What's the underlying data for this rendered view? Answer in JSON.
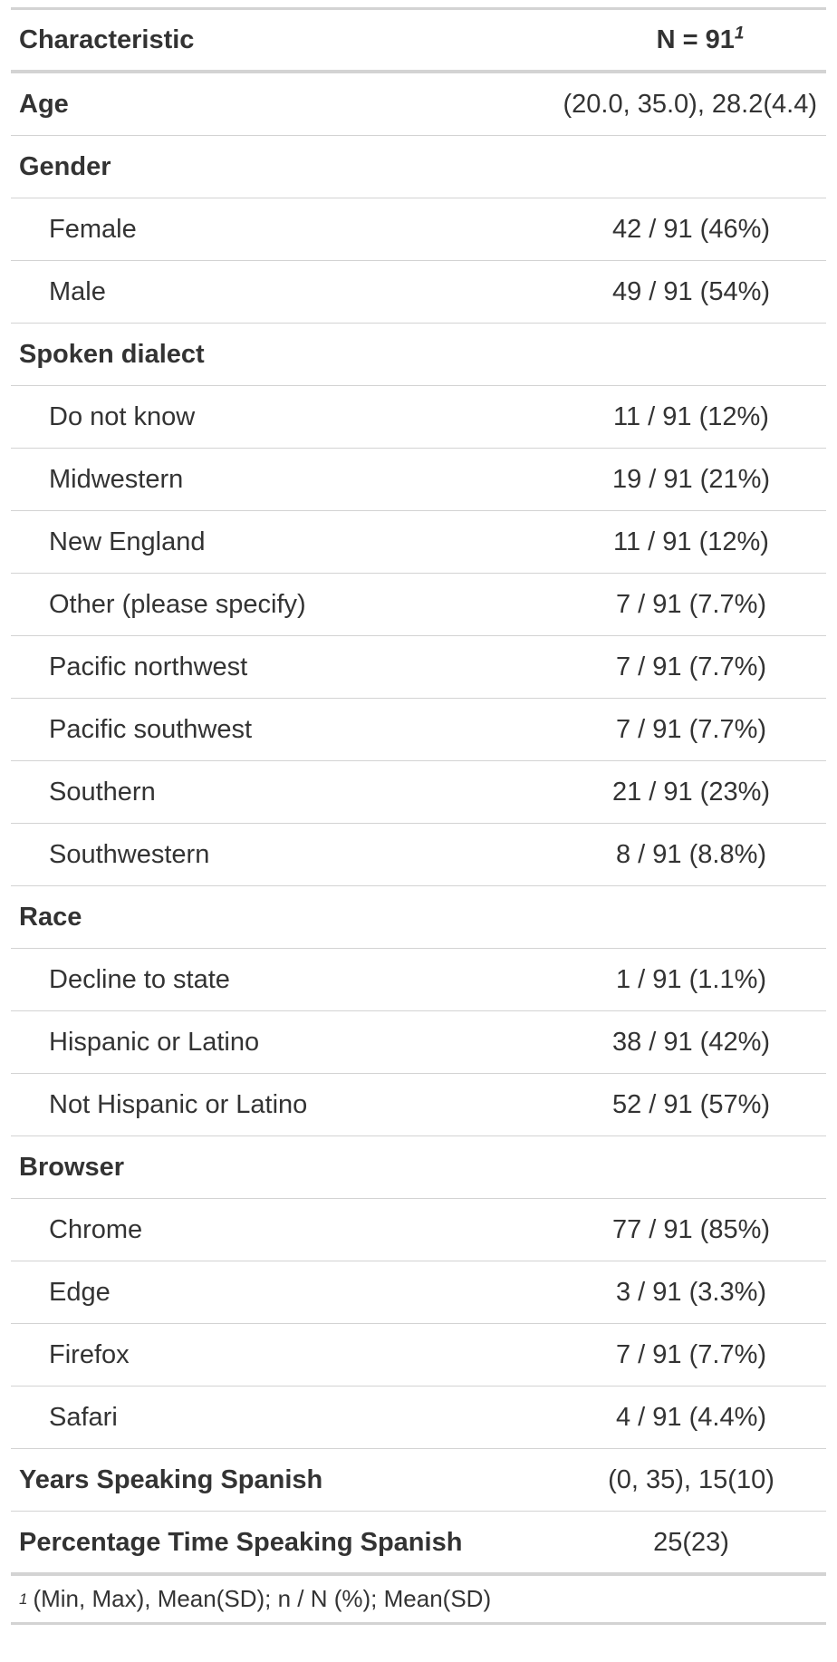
{
  "header": {
    "characteristic": "Characteristic",
    "n_label": "N = 91",
    "footnote_marker": "1"
  },
  "rows": [
    {
      "type": "group",
      "label": "Age",
      "value": "(20.0, 35.0), 28.2(4.4)"
    },
    {
      "type": "group",
      "label": "Gender",
      "value": ""
    },
    {
      "type": "sub",
      "label": "Female",
      "value": "42 / 91 (46%)"
    },
    {
      "type": "sub",
      "label": "Male",
      "value": "49 / 91 (54%)"
    },
    {
      "type": "group",
      "label": "Spoken dialect",
      "value": ""
    },
    {
      "type": "sub",
      "label": "Do not know",
      "value": "11 / 91 (12%)"
    },
    {
      "type": "sub",
      "label": "Midwestern",
      "value": "19 / 91 (21%)"
    },
    {
      "type": "sub",
      "label": "New England",
      "value": "11 / 91 (12%)"
    },
    {
      "type": "sub",
      "label": "Other (please specify)",
      "value": "7 / 91 (7.7%)"
    },
    {
      "type": "sub",
      "label": "Pacific northwest",
      "value": "7 / 91 (7.7%)"
    },
    {
      "type": "sub",
      "label": "Pacific southwest",
      "value": "7 / 91 (7.7%)"
    },
    {
      "type": "sub",
      "label": "Southern",
      "value": "21 / 91 (23%)"
    },
    {
      "type": "sub",
      "label": "Southwestern",
      "value": "8 / 91 (8.8%)"
    },
    {
      "type": "group",
      "label": "Race",
      "value": ""
    },
    {
      "type": "sub",
      "label": "Decline to state",
      "value": "1 / 91 (1.1%)"
    },
    {
      "type": "sub",
      "label": "Hispanic or Latino",
      "value": "38 / 91 (42%)"
    },
    {
      "type": "sub",
      "label": "Not Hispanic or Latino",
      "value": "52 / 91 (57%)"
    },
    {
      "type": "group",
      "label": "Browser",
      "value": ""
    },
    {
      "type": "sub",
      "label": "Chrome",
      "value": "77 / 91 (85%)"
    },
    {
      "type": "sub",
      "label": "Edge",
      "value": "3 / 91 (3.3%)"
    },
    {
      "type": "sub",
      "label": "Firefox",
      "value": "7 / 91 (7.7%)"
    },
    {
      "type": "sub",
      "label": "Safari",
      "value": "4 / 91 (4.4%)"
    },
    {
      "type": "group",
      "label": "Years Speaking Spanish",
      "value": "(0, 35), 15(10)"
    },
    {
      "type": "group",
      "label": "Percentage Time Speaking Spanish",
      "value": "25(23)"
    }
  ],
  "footnote": {
    "marker": "1",
    "text": "(Min, Max), Mean(SD); n / N (%); Mean(SD)"
  }
}
